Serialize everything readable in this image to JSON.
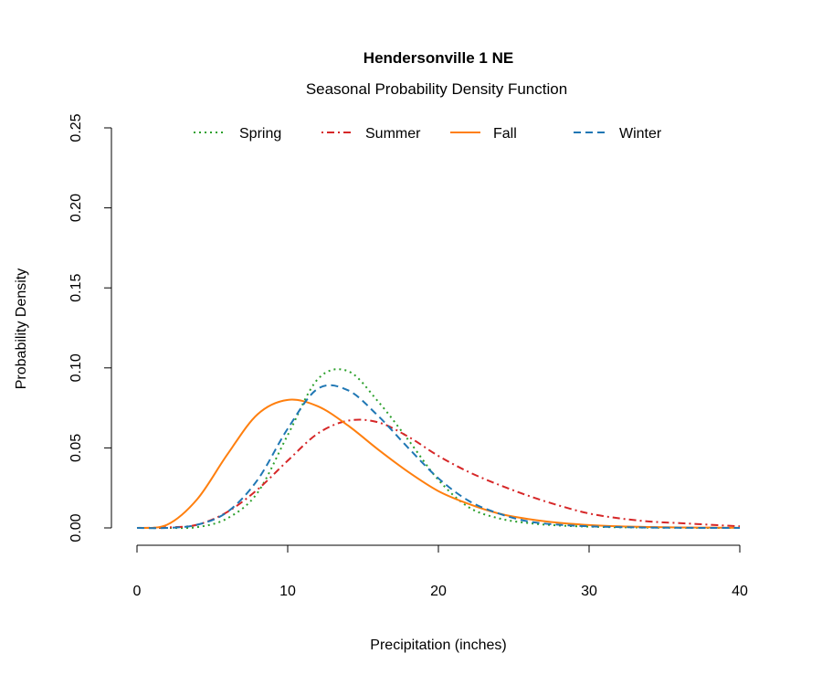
{
  "chart_data": {
    "type": "line",
    "title": "Hendersonville 1 NE",
    "subtitle": "Seasonal Probability Density Function",
    "xlabel": "Precipitation (inches)",
    "ylabel": "Probability Density",
    "xlim": [
      0,
      40
    ],
    "ylim": [
      0,
      0.25
    ],
    "xticks": [
      "0",
      "10",
      "20",
      "30",
      "40"
    ],
    "yticks": [
      "0.00",
      "0.05",
      "0.10",
      "0.15",
      "0.20",
      "0.25"
    ],
    "grid": false,
    "legend_position": "top",
    "x": [
      0,
      2,
      4,
      6,
      8,
      10,
      12,
      14,
      16,
      18,
      20,
      22,
      24,
      26,
      28,
      30,
      32,
      34,
      36,
      38,
      40
    ],
    "series": [
      {
        "name": "Spring",
        "color": "#2ca02c",
        "linestyle": "dotted",
        "values": [
          0,
          0,
          0.0005,
          0.006,
          0.022,
          0.058,
          0.093,
          0.098,
          0.079,
          0.055,
          0.03,
          0.013,
          0.006,
          0.003,
          0.0015,
          0.0008,
          0.0004,
          0.0002,
          0.0001,
          0,
          0
        ]
      },
      {
        "name": "Summer",
        "color": "#d62728",
        "linestyle": "dotdash",
        "values": [
          0,
          0.0003,
          0.002,
          0.01,
          0.024,
          0.042,
          0.059,
          0.067,
          0.066,
          0.057,
          0.045,
          0.035,
          0.027,
          0.02,
          0.014,
          0.009,
          0.006,
          0.004,
          0.003,
          0.002,
          0.001
        ]
      },
      {
        "name": "Fall",
        "color": "#ff7f0e",
        "linestyle": "solid",
        "values": [
          0,
          0.002,
          0.018,
          0.046,
          0.071,
          0.08,
          0.076,
          0.064,
          0.049,
          0.035,
          0.023,
          0.015,
          0.009,
          0.0055,
          0.0032,
          0.0018,
          0.001,
          0.0006,
          0.0003,
          0.0002,
          0.0001
        ]
      },
      {
        "name": "Winter",
        "color": "#1f77b4",
        "linestyle": "dashed",
        "values": [
          0,
          0,
          0.002,
          0.01,
          0.03,
          0.062,
          0.087,
          0.086,
          0.07,
          0.05,
          0.031,
          0.017,
          0.009,
          0.004,
          0.002,
          0.001,
          0.0005,
          0.0002,
          0.0001,
          0,
          0
        ]
      }
    ]
  }
}
